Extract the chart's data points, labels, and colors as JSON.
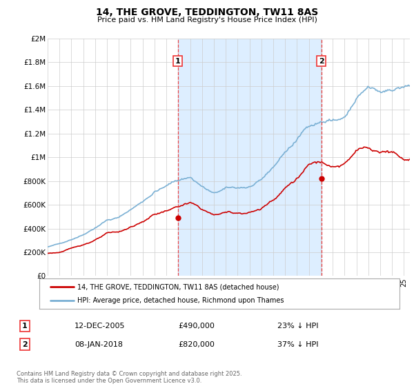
{
  "title": "14, THE GROVE, TEDDINGTON, TW11 8AS",
  "subtitle": "Price paid vs. HM Land Registry's House Price Index (HPI)",
  "ylabel_ticks": [
    "£0",
    "£200K",
    "£400K",
    "£600K",
    "£800K",
    "£1M",
    "£1.2M",
    "£1.4M",
    "£1.6M",
    "£1.8M",
    "£2M"
  ],
  "ytick_values": [
    0,
    200000,
    400000,
    600000,
    800000,
    1000000,
    1200000,
    1400000,
    1600000,
    1800000,
    2000000
  ],
  "ylim": [
    0,
    2000000
  ],
  "legend_line1": "14, THE GROVE, TEDDINGTON, TW11 8AS (detached house)",
  "legend_line2": "HPI: Average price, detached house, Richmond upon Thames",
  "annotation1_date": "12-DEC-2005",
  "annotation1_price": "£490,000",
  "annotation1_hpi": "23% ↓ HPI",
  "annotation2_date": "08-JAN-2018",
  "annotation2_price": "£820,000",
  "annotation2_hpi": "37% ↓ HPI",
  "footer": "Contains HM Land Registry data © Crown copyright and database right 2025.\nThis data is licensed under the Open Government Licence v3.0.",
  "line_color_red": "#cc0000",
  "line_color_blue": "#7ab0d4",
  "shade_color": "#ddeeff",
  "vline_color": "#ee3333",
  "grid_color": "#cccccc",
  "background_color": "#ffffff",
  "sale1_x": 2005.958,
  "sale1_y": 490000,
  "sale2_x": 2018.04,
  "sale2_y": 820000,
  "xmin": 1995,
  "xmax": 2025.5
}
